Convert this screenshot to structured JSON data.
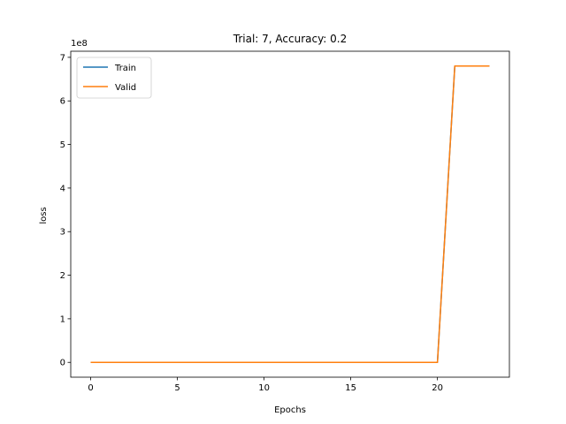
{
  "chart_data": {
    "type": "line",
    "title": "Trial: 7, Accuracy: 0.2",
    "xlabel": "Epochs",
    "ylabel": "loss",
    "y_offset_label": "1e8",
    "x_ticks": [
      0,
      5,
      10,
      15,
      20
    ],
    "y_ticks": [
      0,
      1,
      2,
      3,
      4,
      5,
      6,
      7
    ],
    "y_tick_labels": [
      "0",
      "1",
      "2",
      "3",
      "4",
      "5",
      "6",
      "7"
    ],
    "x_tick_labels": [
      "0",
      "5",
      "10",
      "15",
      "20"
    ],
    "xlim": [
      -1.15,
      24.15
    ],
    "ylim": [
      -34000000,
      714000000
    ],
    "legend_position": "upper-left",
    "grid": false,
    "x": [
      0,
      1,
      2,
      3,
      4,
      5,
      6,
      7,
      8,
      9,
      10,
      11,
      12,
      13,
      14,
      15,
      16,
      17,
      18,
      19,
      20,
      21,
      22,
      23
    ],
    "series": [
      {
        "name": "Train",
        "color": "#1f77b4",
        "values": [
          0,
          0,
          0,
          0,
          0,
          0,
          0,
          0,
          0,
          0,
          0,
          0,
          0,
          0,
          0,
          0,
          0,
          0,
          0,
          0,
          0,
          680000000,
          680000000,
          680000000
        ]
      },
      {
        "name": "Valid",
        "color": "#ff7f0e",
        "values": [
          0,
          0,
          0,
          0,
          0,
          0,
          0,
          0,
          0,
          0,
          0,
          0,
          0,
          0,
          0,
          0,
          0,
          0,
          0,
          0,
          0,
          680000000,
          680000000,
          680000000
        ]
      }
    ]
  }
}
